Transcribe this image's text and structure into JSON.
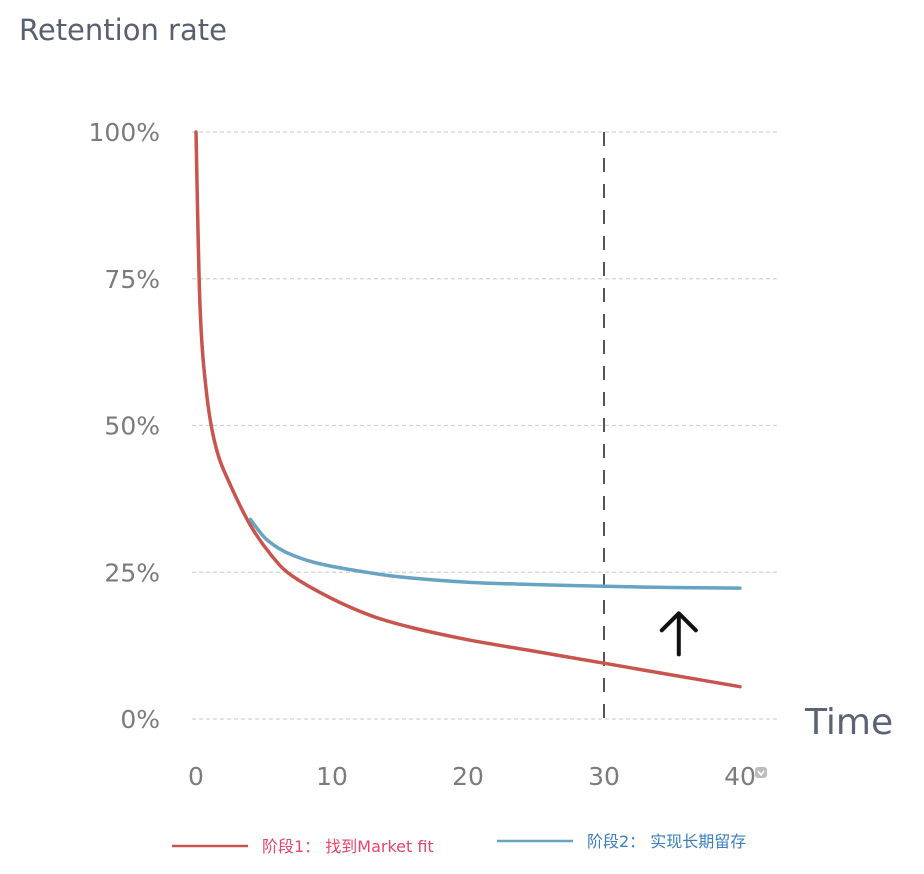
{
  "chart_data": {
    "type": "line",
    "title": "Retention rate",
    "xlabel": "Time",
    "ylabel": "",
    "xlim": [
      0,
      40
    ],
    "ylim": [
      0,
      100
    ],
    "x_ticks": [
      0,
      10,
      20,
      30,
      40
    ],
    "y_ticks": [
      0,
      25,
      50,
      75,
      100
    ],
    "y_tick_labels": [
      "0%",
      "25%",
      "50%",
      "75%",
      "100%"
    ],
    "grid": true,
    "reference_line": {
      "axis": "x",
      "value": 30,
      "style": "dashed"
    },
    "annotation": {
      "type": "up-arrow",
      "x": 35.5,
      "y_from": 11,
      "y_to": 18
    },
    "legend_position": "bottom",
    "series": [
      {
        "name": "阶段1： 找到Market fit",
        "color": "#c9544e",
        "legend_text_color": "#e5466a",
        "x": [
          0,
          0.3,
          0.8,
          1.5,
          2.5,
          4,
          5.5,
          7,
          10,
          13,
          16,
          20,
          25,
          30,
          35,
          40
        ],
        "values": [
          100,
          70,
          55,
          46,
          40,
          33,
          28,
          24.5,
          20.5,
          17.5,
          15.5,
          13.5,
          11.5,
          9.5,
          7.5,
          5.5
        ]
      },
      {
        "name": "阶段2： 实现长期留存",
        "color": "#66a4c2",
        "legend_text_color": "#3a7fbf",
        "x": [
          4,
          5,
          6,
          7,
          8.5,
          10,
          12,
          15,
          20,
          25,
          30,
          35,
          40
        ],
        "values": [
          34,
          31,
          29.2,
          28,
          26.8,
          26,
          25.2,
          24.2,
          23.3,
          22.9,
          22.6,
          22.4,
          22.3
        ]
      }
    ]
  }
}
